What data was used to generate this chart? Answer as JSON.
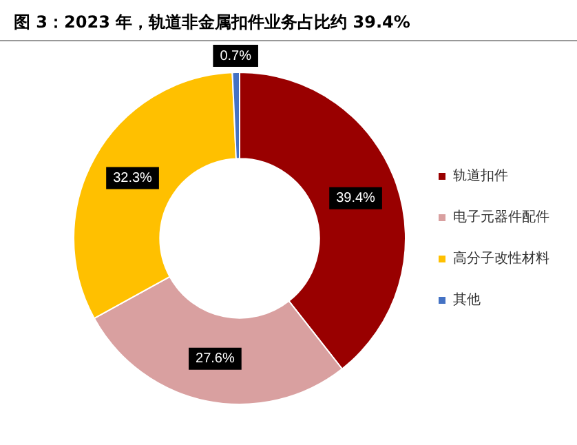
{
  "chart_data": {
    "type": "donut",
    "title": "图 3：2023 年，轨道非金属扣件业务占比约 39.4%",
    "categories": [
      "轨道扣件",
      "电子元器件配件",
      "高分子改性材料",
      "其他"
    ],
    "values": [
      39.4,
      27.6,
      32.3,
      0.7
    ],
    "colors": [
      "#990000",
      "#d9a0a0",
      "#ffc000",
      "#4472c4"
    ],
    "value_labels": [
      "39.4%",
      "27.6%",
      "32.3%",
      "0.7%"
    ],
    "legend": "right"
  }
}
